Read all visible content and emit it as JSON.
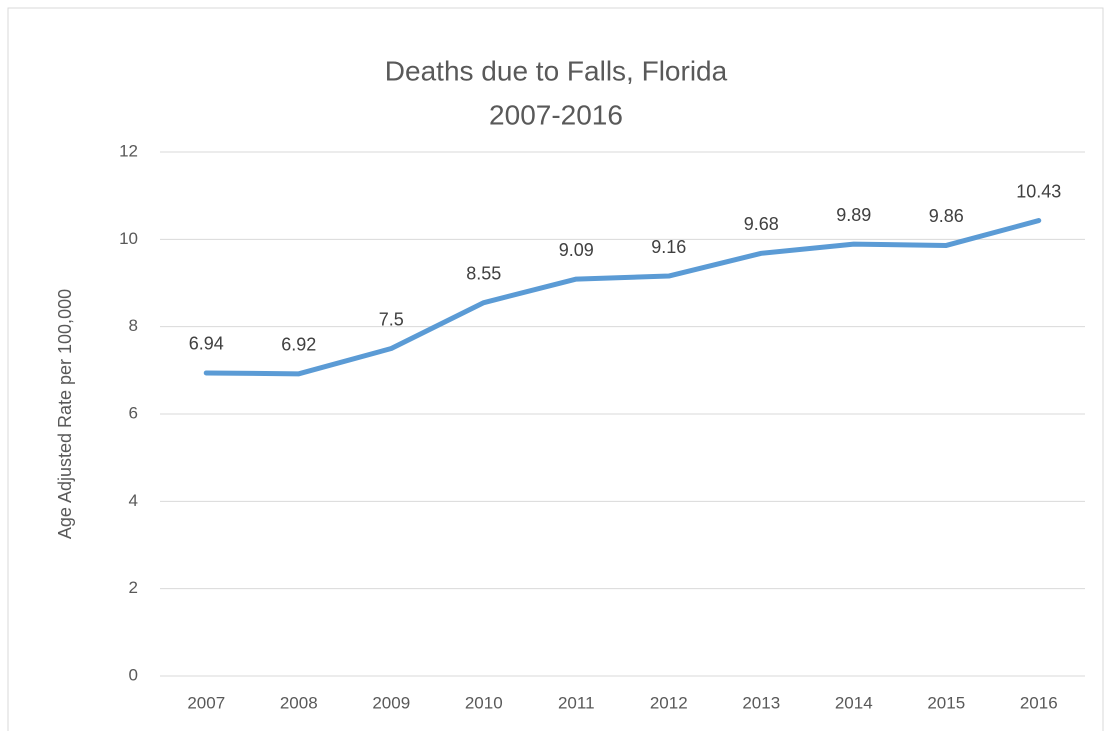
{
  "chart_data": {
    "type": "line",
    "title": "Deaths due to Falls, Florida",
    "subtitle": "2007-2016",
    "y_label": "Age Adjusted Rate per 100,000",
    "categories": [
      "2007",
      "2008",
      "2009",
      "2010",
      "2011",
      "2012",
      "2013",
      "2014",
      "2015",
      "2016"
    ],
    "series": [
      {
        "name": "Age Adjusted Rate",
        "color": "#5b9bd5",
        "values": [
          6.94,
          6.92,
          7.5,
          8.55,
          9.09,
          9.16,
          9.68,
          9.89,
          9.86,
          10.43
        ]
      }
    ],
    "ylim": [
      0,
      12
    ],
    "yticks": [
      0,
      2,
      4,
      6,
      8,
      10,
      12
    ],
    "grid": true
  }
}
